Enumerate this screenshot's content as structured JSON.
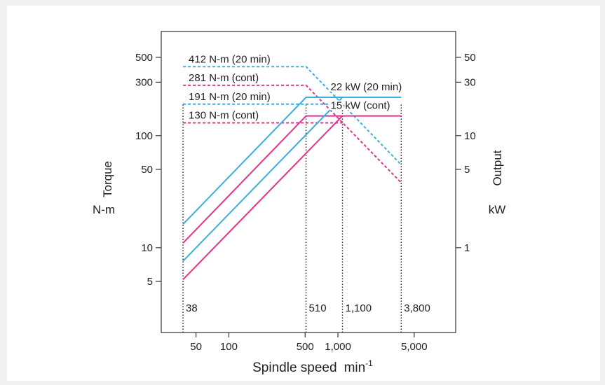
{
  "chart_data": {
    "type": "line",
    "title": "",
    "xlabel": "Spindle speed",
    "xlabel_unit_base": "min",
    "xlabel_unit_exp": "-1",
    "ylabel_left_name": "Torque",
    "ylabel_left_unit": "N-m",
    "ylabel_right_name": "Output",
    "ylabel_right_unit": "kW",
    "x_scale": "log",
    "y_scale": "log",
    "xlim": [
      24,
      12000
    ],
    "ylim_left": [
      1.75,
      850
    ],
    "ylim_right": [
      0.175,
      85
    ],
    "grid": false,
    "x_ticks": [
      {
        "value": 50,
        "label": "50"
      },
      {
        "value": 100,
        "label": "100"
      },
      {
        "value": 500,
        "label": "500"
      },
      {
        "value": 1000,
        "label": "1,000"
      },
      {
        "value": 5000,
        "label": "5,000"
      }
    ],
    "y_left_ticks": [
      {
        "value": 5,
        "label": "5"
      },
      {
        "value": 10,
        "label": "10"
      },
      {
        "value": 50,
        "label": "50"
      },
      {
        "value": 100,
        "label": "100"
      },
      {
        "value": 300,
        "label": "300"
      },
      {
        "value": 500,
        "label": "500"
      }
    ],
    "y_right_ticks": [
      {
        "value": 1,
        "label": "1"
      },
      {
        "value": 5,
        "label": "5"
      },
      {
        "value": 10,
        "label": "10"
      },
      {
        "value": 30,
        "label": "30"
      },
      {
        "value": 50,
        "label": "50"
      }
    ],
    "speed_markers": [
      {
        "value": 38,
        "label": "38"
      },
      {
        "value": 510,
        "label": "510"
      },
      {
        "value": 1100,
        "label": "1,100"
      },
      {
        "value": 3800,
        "label": "3,800"
      }
    ],
    "colors": {
      "twenty_min": "#3aaee0",
      "continuous": "#e0338e"
    },
    "series": [
      {
        "axis": "left",
        "color_key": "twenty_min",
        "style": "dashed",
        "x": [
          38,
          510,
          3800
        ],
        "y": [
          412,
          412,
          55
        ]
      },
      {
        "axis": "left",
        "color_key": "continuous",
        "style": "dashed",
        "x": [
          38,
          510,
          3800
        ],
        "y": [
          281,
          281,
          38
        ]
      },
      {
        "axis": "left",
        "color_key": "twenty_min",
        "style": "dashed",
        "x": [
          38,
          1100
        ],
        "y": [
          191,
          191
        ]
      },
      {
        "axis": "left",
        "color_key": "continuous",
        "style": "dashed",
        "x": [
          38,
          1100
        ],
        "y": [
          130,
          130
        ]
      },
      {
        "axis": "right",
        "color_key": "twenty_min",
        "style": "solid",
        "x": [
          38,
          510,
          3800
        ],
        "y": [
          1.62,
          22,
          22
        ]
      },
      {
        "axis": "right",
        "color_key": "continuous",
        "style": "solid",
        "x": [
          38,
          510,
          3800
        ],
        "y": [
          1.1,
          15,
          15
        ]
      },
      {
        "axis": "right",
        "color_key": "twenty_min",
        "style": "solid",
        "x": [
          38,
          1100
        ],
        "y": [
          0.76,
          22
        ]
      },
      {
        "axis": "right",
        "color_key": "continuous",
        "style": "solid",
        "x": [
          38,
          1100
        ],
        "y": [
          0.52,
          15
        ]
      }
    ],
    "annotations": [
      {
        "text": "412 N-m (20 min)",
        "x": 38,
        "y": 412,
        "axis": "left",
        "anchor": "start"
      },
      {
        "text": "281 N-m (cont)",
        "x": 38,
        "y": 281,
        "axis": "left",
        "anchor": "start"
      },
      {
        "text": "191 N-m (20 min)",
        "x": 38,
        "y": 191,
        "axis": "left",
        "anchor": "start"
      },
      {
        "text": "130 N-m (cont)",
        "x": 38,
        "y": 130,
        "axis": "left",
        "anchor": "start"
      },
      {
        "text": "22 kW (20 min)",
        "x": 1100,
        "y": 22,
        "axis": "right",
        "anchor": "start"
      },
      {
        "text": "15 kW (cont)",
        "x": 1100,
        "y": 15,
        "axis": "right",
        "anchor": "start"
      }
    ]
  }
}
